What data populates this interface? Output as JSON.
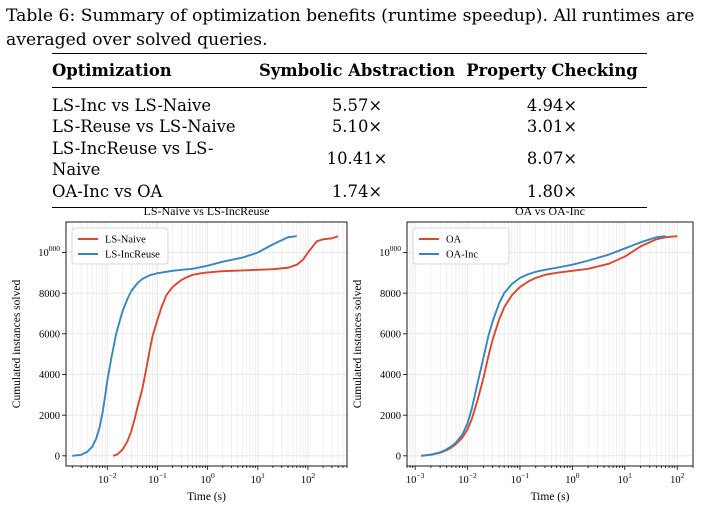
{
  "caption": {
    "label": "Table 6:",
    "text": "Summary of optimization benefits (runtime speedup). All runtimes are averaged over solved queries."
  },
  "table": {
    "headers": [
      "Optimization",
      "Symbolic Abstraction",
      "Property Checking"
    ],
    "rows": [
      [
        "LS-Inc vs LS-Naive",
        "5.57×",
        "4.94×"
      ],
      [
        "LS-Reuse vs LS-Naive",
        "5.10×",
        "3.01×"
      ],
      [
        "LS-IncReuse vs LS-Naive",
        "10.41×",
        "8.07×"
      ],
      [
        "OA-Inc vs OA",
        "1.74×",
        "1.80×"
      ]
    ]
  },
  "colors": {
    "red": "#d9472f",
    "blue": "#3a86bb"
  },
  "chart_data": [
    {
      "type": "line",
      "title": "LS-Naive vs LS-IncReuse",
      "xlabel": "Time (s)",
      "ylabel": "Cumulated instances solved",
      "xscale": "log",
      "xlim": [
        0.0015,
        600
      ],
      "ylim": [
        -500,
        11500
      ],
      "xticks": [
        0.01,
        0.1,
        1,
        10,
        100
      ],
      "xtick_labels": [
        "10−2",
        "10−1",
        "100",
        "101",
        "102"
      ],
      "yticks": [
        0,
        2000,
        4000,
        6000,
        8000,
        10000
      ],
      "ytick_labels": [
        "0",
        "2000",
        "4000",
        "6000",
        "8000",
        "10000"
      ],
      "grid": true,
      "legend": "top-left",
      "series": [
        {
          "name": "LS-Naive",
          "color": "#d9472f",
          "x": [
            0.013,
            0.016,
            0.02,
            0.025,
            0.03,
            0.035,
            0.04,
            0.05,
            0.06,
            0.07,
            0.08,
            0.1,
            0.12,
            0.15,
            0.2,
            0.25,
            0.3,
            0.4,
            0.5,
            0.7,
            1,
            2,
            5,
            10,
            20,
            40,
            60,
            80,
            100,
            150,
            200,
            300,
            400
          ],
          "y": [
            0,
            80,
            300,
            700,
            1200,
            1800,
            2400,
            3300,
            4300,
            5200,
            5900,
            6700,
            7300,
            7900,
            8300,
            8500,
            8650,
            8800,
            8900,
            8970,
            9020,
            9080,
            9120,
            9150,
            9180,
            9250,
            9400,
            9650,
            10000,
            10550,
            10650,
            10700,
            10800
          ]
        },
        {
          "name": "LS-IncReuse",
          "color": "#3a86bb",
          "x": [
            0.002,
            0.003,
            0.004,
            0.005,
            0.006,
            0.007,
            0.008,
            0.009,
            0.01,
            0.012,
            0.015,
            0.02,
            0.025,
            0.03,
            0.04,
            0.05,
            0.07,
            0.1,
            0.15,
            0.2,
            0.3,
            0.5,
            1,
            2,
            5,
            10,
            20,
            40,
            60
          ],
          "y": [
            0,
            50,
            200,
            450,
            850,
            1400,
            2100,
            2900,
            3700,
            4800,
            6000,
            7100,
            7700,
            8100,
            8500,
            8700,
            8880,
            8980,
            9050,
            9100,
            9150,
            9200,
            9350,
            9550,
            9750,
            10000,
            10400,
            10750,
            10800
          ]
        }
      ]
    },
    {
      "type": "line",
      "title": "OA vs OA-Inc",
      "xlabel": "Time (s)",
      "ylabel": "Cumulated instances solved",
      "xscale": "log",
      "xlim": [
        0.0007,
        200
      ],
      "ylim": [
        -500,
        11500
      ],
      "xticks": [
        0.001,
        0.01,
        0.1,
        1,
        10,
        100
      ],
      "xtick_labels": [
        "10−3",
        "10−2",
        "10−1",
        "100",
        "101",
        "102"
      ],
      "yticks": [
        0,
        2000,
        4000,
        6000,
        8000,
        10000
      ],
      "ytick_labels": [
        "0",
        "2000",
        "4000",
        "6000",
        "8000",
        "10000"
      ],
      "grid": true,
      "legend": "top-left",
      "series": [
        {
          "name": "OA",
          "color": "#d9472f",
          "x": [
            0.0013,
            0.002,
            0.003,
            0.004,
            0.005,
            0.006,
            0.008,
            0.01,
            0.012,
            0.015,
            0.02,
            0.025,
            0.03,
            0.04,
            0.05,
            0.07,
            0.1,
            0.15,
            0.2,
            0.3,
            0.5,
            1,
            2,
            5,
            10,
            20,
            40,
            60,
            100
          ],
          "y": [
            0,
            50,
            150,
            280,
            420,
            580,
            900,
            1300,
            1800,
            2600,
            3800,
            4900,
            5700,
            6700,
            7300,
            7900,
            8300,
            8600,
            8750,
            8900,
            9000,
            9100,
            9200,
            9450,
            9800,
            10300,
            10650,
            10750,
            10800
          ]
        },
        {
          "name": "OA-Inc",
          "color": "#3a86bb",
          "x": [
            0.0013,
            0.002,
            0.003,
            0.004,
            0.005,
            0.006,
            0.008,
            0.01,
            0.012,
            0.015,
            0.02,
            0.025,
            0.03,
            0.04,
            0.05,
            0.07,
            0.1,
            0.15,
            0.2,
            0.3,
            0.5,
            1,
            2,
            5,
            10,
            20,
            40,
            60
          ],
          "y": [
            0,
            60,
            170,
            320,
            480,
            650,
            1050,
            1600,
            2300,
            3400,
            4800,
            5900,
            6600,
            7500,
            8000,
            8450,
            8750,
            8950,
            9050,
            9150,
            9250,
            9400,
            9600,
            9900,
            10200,
            10500,
            10750,
            10800
          ]
        }
      ]
    }
  ]
}
